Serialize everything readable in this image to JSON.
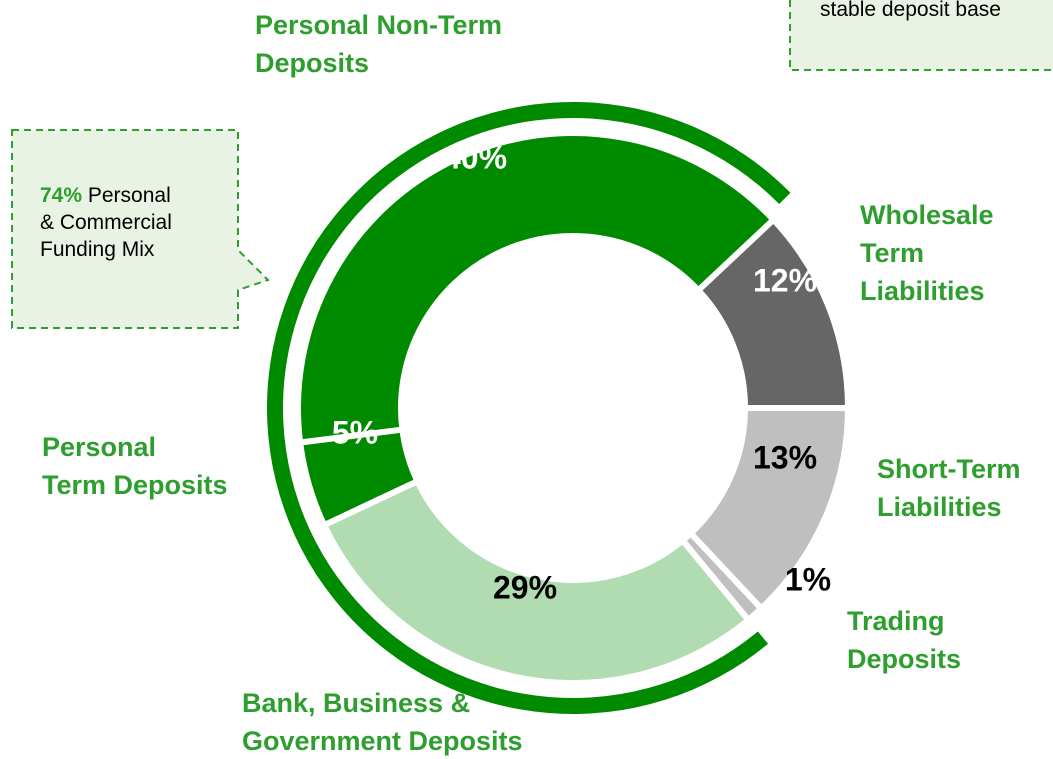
{
  "chart_data": {
    "type": "donut",
    "categories": [
      [
        "Short-Term",
        "Liabilities"
      ],
      [
        "Trading",
        "Deposits"
      ],
      [
        "Bank, Business &",
        "Government Deposits"
      ],
      [
        "Personal",
        "Term Deposits"
      ],
      [
        "Personal Non-Term",
        "Deposits"
      ],
      [
        "Wholesale",
        "Term",
        "Liabilities"
      ]
    ],
    "values": [
      13,
      1,
      29,
      5,
      40,
      12
    ],
    "value_labels": [
      "13%",
      "1%",
      "29%",
      "5%",
      "40%",
      "12%"
    ],
    "colors": [
      "#bfbfbf",
      "#bfbfbf",
      "#b1dbb1",
      "#008a00",
      "#008a00",
      "#666666"
    ],
    "value_label_colors": [
      "#000000",
      "#000000",
      "#000000",
      "#ffffff",
      "#ffffff",
      "#ffffff"
    ],
    "label_color": "#2e9e2e",
    "callouts": [
      {
        "value": 74,
        "value_label": "74%",
        "lines": [
          "Personal",
          "& Commercial",
          "Funding Mix"
        ]
      },
      {
        "lines": [
          "stable deposit base"
        ]
      }
    ]
  }
}
